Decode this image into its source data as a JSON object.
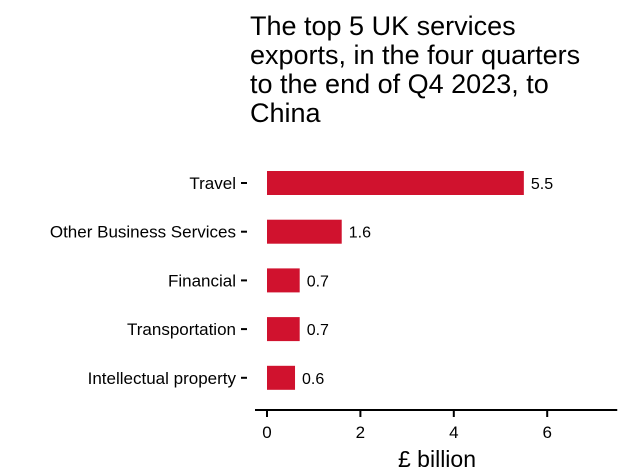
{
  "chart_data": {
    "type": "bar",
    "orientation": "horizontal",
    "title": "The top 5 UK services exports, in the four quarters to the end of Q4 2023, to China",
    "categories": [
      "Travel",
      "Other Business Services",
      "Financial",
      "Transportation",
      "Intellectual property"
    ],
    "values": [
      5.5,
      1.6,
      0.7,
      0.7,
      0.6
    ],
    "value_labels": [
      "5.5",
      "1.6",
      "0.7",
      "0.7",
      "0.6"
    ],
    "xlabel": "£ billion",
    "ylabel": "",
    "xlim": [
      0,
      7.5
    ],
    "xticks": [
      0,
      2,
      4,
      6
    ],
    "grid": false,
    "legend": "none",
    "bar_color": "#d0122e"
  }
}
